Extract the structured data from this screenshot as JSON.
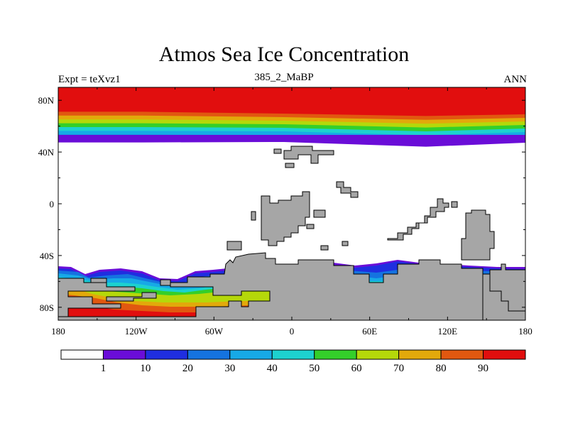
{
  "chart_data": {
    "type": "heatmap",
    "title": "Atmos Sea Ice Concentration",
    "left_label": "Expt = teXvz1",
    "center_label": "385_2_MaBP",
    "right_label": "ANN",
    "x_ticks": [
      "180",
      "120W",
      "60W",
      "0",
      "60E",
      "120E",
      "180"
    ],
    "y_ticks": [
      "80N",
      "40N",
      "0",
      "40S",
      "80S"
    ],
    "xlim": [
      -180,
      180
    ],
    "ylim": [
      -90,
      90
    ],
    "colorbar": {
      "labels": [
        "1",
        "10",
        "20",
        "30",
        "40",
        "50",
        "60",
        "70",
        "80",
        "90"
      ],
      "colors": [
        "#ffffff",
        "#6a0dd8",
        "#1f2ee0",
        "#1573e0",
        "#17a9e6",
        "#1dd1cf",
        "#34cf2a",
        "#b5d80a",
        "#e2a90b",
        "#e15810",
        "#e10e0e"
      ]
    },
    "land_color": "#a6a6a6"
  }
}
